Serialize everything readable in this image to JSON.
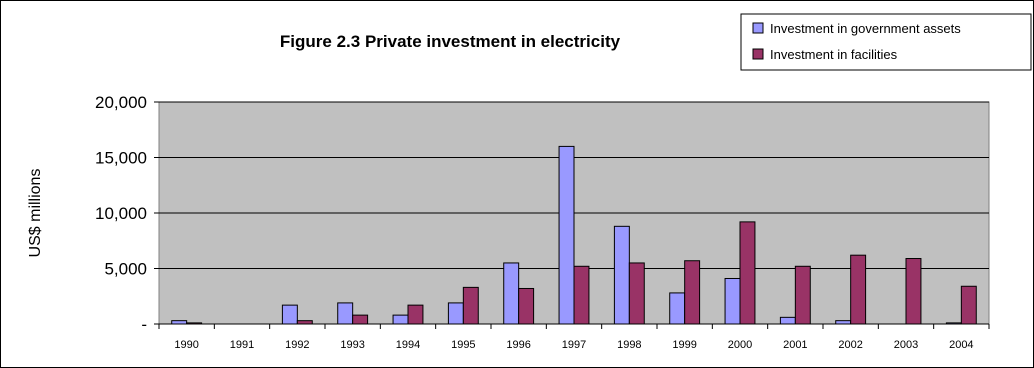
{
  "colors": {
    "series_1": "#9999ff",
    "series_2": "#993366",
    "plot_background": "#c0c0c0",
    "gridline": "#000000"
  },
  "chart_data": {
    "type": "bar",
    "title": "Figure 2.3 Private investment in electricity",
    "xlabel": "",
    "ylabel": "US$ millions",
    "ylim": [
      0,
      20000
    ],
    "yticks": [
      0,
      5000,
      10000,
      15000,
      20000
    ],
    "ytick_labels": [
      "-",
      "5,000",
      "10,000",
      "15,000",
      "20,000"
    ],
    "grid": true,
    "legend_position": "top-right",
    "categories": [
      "1990",
      "1991",
      "1992",
      "1993",
      "1994",
      "1995",
      "1996",
      "1997",
      "1998",
      "1999",
      "2000",
      "2001",
      "2002",
      "2003",
      "2004"
    ],
    "series": [
      {
        "name": "Investment in government assets",
        "values": [
          300,
          0,
          1700,
          1900,
          800,
          1900,
          5500,
          16000,
          8800,
          2800,
          4100,
          600,
          300,
          0,
          100
        ]
      },
      {
        "name": "Investment in facilities",
        "values": [
          100,
          0,
          300,
          800,
          1700,
          3300,
          3200,
          5200,
          5500,
          5700,
          9200,
          5200,
          6200,
          5900,
          3400
        ]
      }
    ]
  }
}
